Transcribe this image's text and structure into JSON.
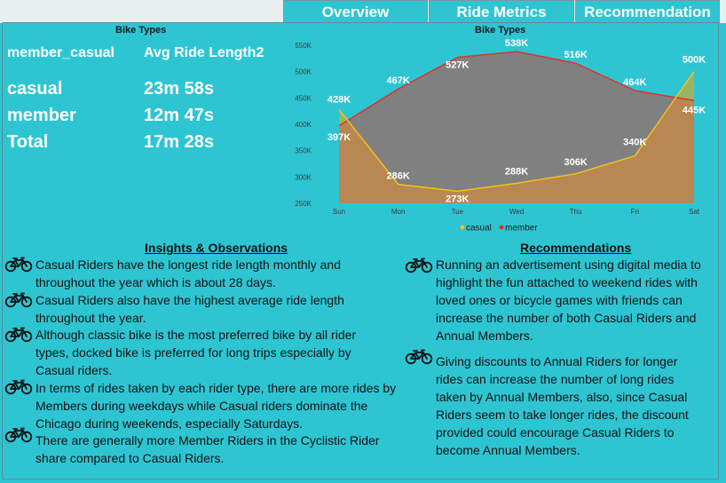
{
  "tabs": [
    "Overview",
    "Ride Metrics",
    "Recommendation"
  ],
  "matrix": {
    "title": "Bike Types",
    "col1": "member_casual",
    "col2": "Avg Ride Length2",
    "rows": [
      {
        "label": "casual",
        "value": "23m 58s"
      },
      {
        "label": "member",
        "value": "12m 47s"
      },
      {
        "label": "Total",
        "value": "17m 28s"
      }
    ]
  },
  "chart_data": {
    "type": "area",
    "title": "Bike Types",
    "categories": [
      "Sun",
      "Mon",
      "Tue",
      "Wed",
      "Thu",
      "Fri",
      "Sat"
    ],
    "series": [
      {
        "name": "casual",
        "values": [
          428,
          286,
          273,
          288,
          306,
          340,
          500
        ],
        "labels": [
          "428K",
          "286K",
          "273K",
          "288K",
          "306K",
          "340K",
          "500K"
        ],
        "color": "#f2c21b"
      },
      {
        "name": "member",
        "values": [
          397,
          467,
          527,
          538,
          516,
          464,
          445
        ],
        "labels": [
          "397K",
          "467K",
          "527K",
          "538K",
          "516K",
          "464K",
          "445K"
        ],
        "color": "#e0302c"
      }
    ],
    "ylim": [
      250,
      550
    ],
    "yticks": [
      250,
      300,
      350,
      400,
      450,
      500,
      550
    ],
    "ytick_labels": [
      "250K",
      "300K",
      "350K",
      "400K",
      "450K",
      "500K",
      "550K"
    ],
    "legend_position": "bottom"
  },
  "insights": {
    "heading": "Insights & Observations",
    "items": [
      "Casual Riders have the longest ride length monthly and throughout the year which is about 28 days.",
      "Casual Riders also have the highest average ride length throughout the year.",
      "Although classic bike is the most preferred bike by all rider types, docked bike is preferred for long trips especially by Casual riders.",
      "In terms of rides taken by each rider type, there are more rides by Members during weekdays while Casual riders dominate the Chicago during weekends, especially Saturdays.",
      "There are generally more Member Riders in the Cyclistic Rider share compared to Casual Riders."
    ]
  },
  "recommendations": {
    "heading": "Recommendations",
    "items": [
      "Running an advertisement using digital media to highlight the fun attached to weekend rides with loved ones or bicycle games with friends can increase the number of both Casual Riders and Annual Members.",
      "Giving discounts to Annual Riders for longer rides can increase the number of long rides taken by Annual Members, also, since Casual Riders seem to take longer rides, the discount provided could encourage Casual Riders to become Annual Members."
    ]
  },
  "colors": {
    "background": "#2ec5d3",
    "member_fill": "#808080",
    "casual_fill": "#b88752",
    "overlap_fill": "#9ab561"
  },
  "icons": {
    "bullet": "bicycle-icon"
  }
}
